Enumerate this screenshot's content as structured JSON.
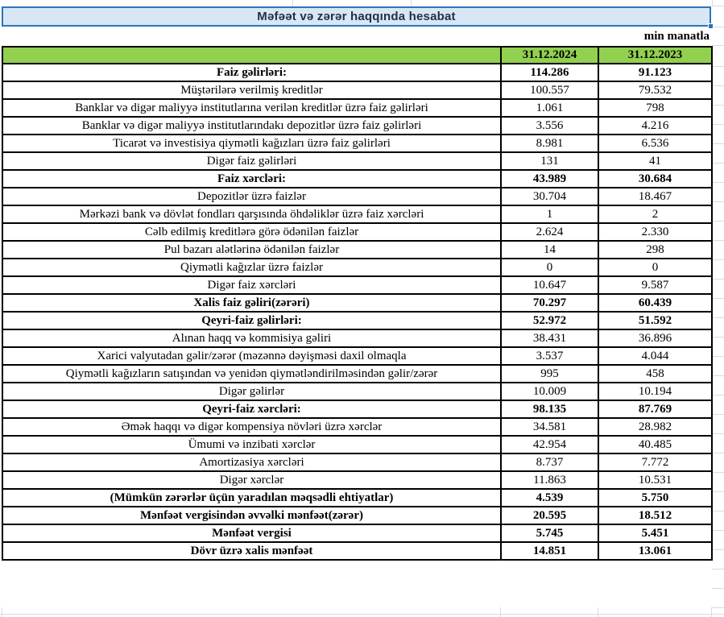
{
  "title": "Məfəət və zərər haqqında hesabat",
  "unit_note": "min manatla",
  "colors": {
    "header_green": "#92d050",
    "banner_fill": "#d8e7f5",
    "banner_border": "#2e75b6",
    "title_text": "#1f3044",
    "table_border": "#000000",
    "gridline": "#d6dce4"
  },
  "table": {
    "columns": [
      "31.12.2024",
      "31.12.2023"
    ],
    "rows": [
      {
        "label": "Faiz gəlirləri:",
        "v2024": "114.286",
        "v2023": "91.123",
        "bold": true
      },
      {
        "label": "Müştərilərə verilmiş kreditlər",
        "v2024": "100.557",
        "v2023": "79.532",
        "bold": false
      },
      {
        "label": "Banklar və digər maliyyə institutlarına verilən kreditlər üzrə faiz gəlirləri",
        "v2024": "1.061",
        "v2023": "798",
        "bold": false
      },
      {
        "label": "Banklar və digər maliyyə institutlarındakı depozitlər üzrə faiz gəlirləri",
        "v2024": "3.556",
        "v2023": "4.216",
        "bold": false
      },
      {
        "label": "Ticarət və investisiya qiymətli kağızları üzrə faiz gəlirləri",
        "v2024": "8.981",
        "v2023": "6.536",
        "bold": false
      },
      {
        "label": "Digər faiz gəlirləri",
        "v2024": "131",
        "v2023": "41",
        "bold": false
      },
      {
        "label": "Faiz xərcləri:",
        "v2024": "43.989",
        "v2023": "30.684",
        "bold": true
      },
      {
        "label": "Depozitlər üzrə faizlər",
        "v2024": "30.704",
        "v2023": "18.467",
        "bold": false
      },
      {
        "label": "Mərkəzi bank və dövlət fondları qarşısında öhdəliklər üzrə faiz xərcləri",
        "v2024": "1",
        "v2023": "2",
        "bold": false
      },
      {
        "label": "Cəlb edilmiş kreditlərə görə ödənilən faizlər",
        "v2024": "2.624",
        "v2023": "2.330",
        "bold": false
      },
      {
        "label": "Pul bazarı alətlərinə ödənilən faizlər",
        "v2024": "14",
        "v2023": "298",
        "bold": false
      },
      {
        "label": "Qiymətli kağızlar üzrə faizlər",
        "v2024": "0",
        "v2023": "0",
        "bold": false
      },
      {
        "label": "Digər faiz xərcləri",
        "v2024": "10.647",
        "v2023": "9.587",
        "bold": false
      },
      {
        "label": "Xalis faiz gəliri(zərəri)",
        "v2024": "70.297",
        "v2023": "60.439",
        "bold": true
      },
      {
        "label": "Qeyri-faiz gəlirləri:",
        "v2024": "52.972",
        "v2023": "51.592",
        "bold": true
      },
      {
        "label": "Alınan haqq və kommisiya gəliri",
        "v2024": "38.431",
        "v2023": "36.896",
        "bold": false
      },
      {
        "label": "Xarici valyutadan gəlir/zərər (məzənnə dəyişməsi daxil olmaqla",
        "v2024": "3.537",
        "v2023": "4.044",
        "bold": false
      },
      {
        "label": "Qiymətli kağızların satışından və yenidən qiymətləndirilməsindən gəlir/zərər",
        "v2024": "995",
        "v2023": "458",
        "bold": false
      },
      {
        "label": "Digər gəlirlər",
        "v2024": "10.009",
        "v2023": "10.194",
        "bold": false
      },
      {
        "label": "Qeyri-faiz xərcləri:",
        "v2024": "98.135",
        "v2023": "87.769",
        "bold": true
      },
      {
        "label": "Əmək haqqı və digər kompensiya növləri üzrə xərclər",
        "v2024": "34.581",
        "v2023": "28.982",
        "bold": false
      },
      {
        "label": "Ümumi və inzibati xərclər",
        "v2024": "42.954",
        "v2023": "40.485",
        "bold": false
      },
      {
        "label": "Amortizasiya xərcləri",
        "v2024": "8.737",
        "v2023": "7.772",
        "bold": false
      },
      {
        "label": "Digər xərclər",
        "v2024": "11.863",
        "v2023": "10.531",
        "bold": false
      },
      {
        "label": "(Mümkün zərərlər üçün yaradılan məqsədli ehtiyatlar)",
        "v2024": "4.539",
        "v2023": "5.750",
        "bold": true
      },
      {
        "label": "Mənfəət vergisindən əvvəlki mənfəət(zərər)",
        "v2024": "20.595",
        "v2023": "18.512",
        "bold": true
      },
      {
        "label": "Mənfəət vergisi",
        "v2024": "5.745",
        "v2023": "5.451",
        "bold": true
      },
      {
        "label": "Dövr üzrə xalis mənfəət",
        "v2024": "14.851",
        "v2023": "13.061",
        "bold": true
      }
    ]
  }
}
